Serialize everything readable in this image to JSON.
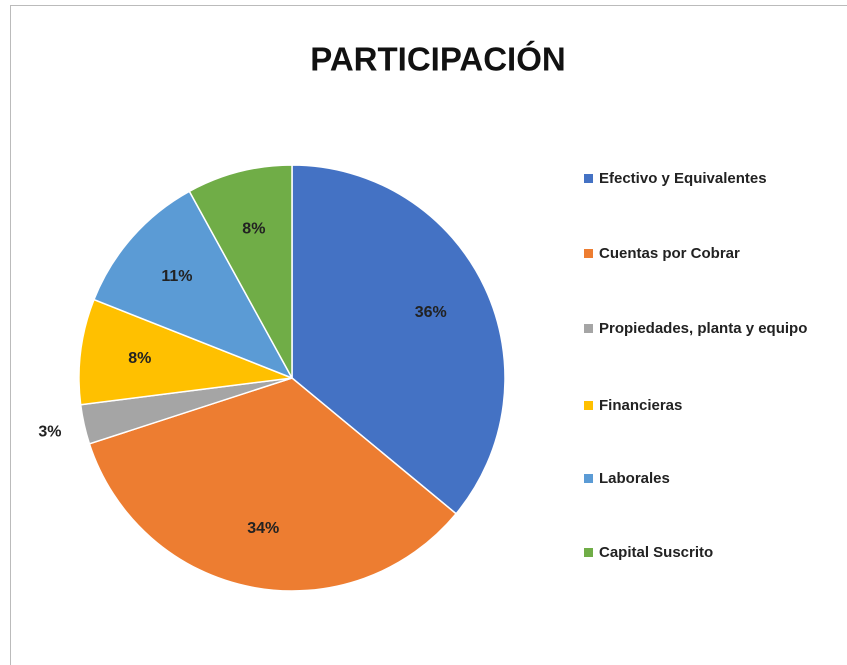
{
  "chart_data": {
    "type": "pie",
    "title": "PARTICIPACIÓN",
    "categories": [
      "Efectivo y Equivalentes",
      "Cuentas por Cobrar",
      "Propiedades, planta y equipo",
      "Financieras",
      "Laborales",
      "Capital Suscrito"
    ],
    "values": [
      36,
      34,
      3,
      8,
      11,
      8
    ],
    "value_labels": [
      "36%",
      "34%",
      "3%",
      "8%",
      "11%",
      "8%"
    ],
    "colors": [
      "#4472c4",
      "#ed7d31",
      "#a5a5a5",
      "#ffc000",
      "#5b9bd5",
      "#70ad47"
    ],
    "legend": "right"
  }
}
